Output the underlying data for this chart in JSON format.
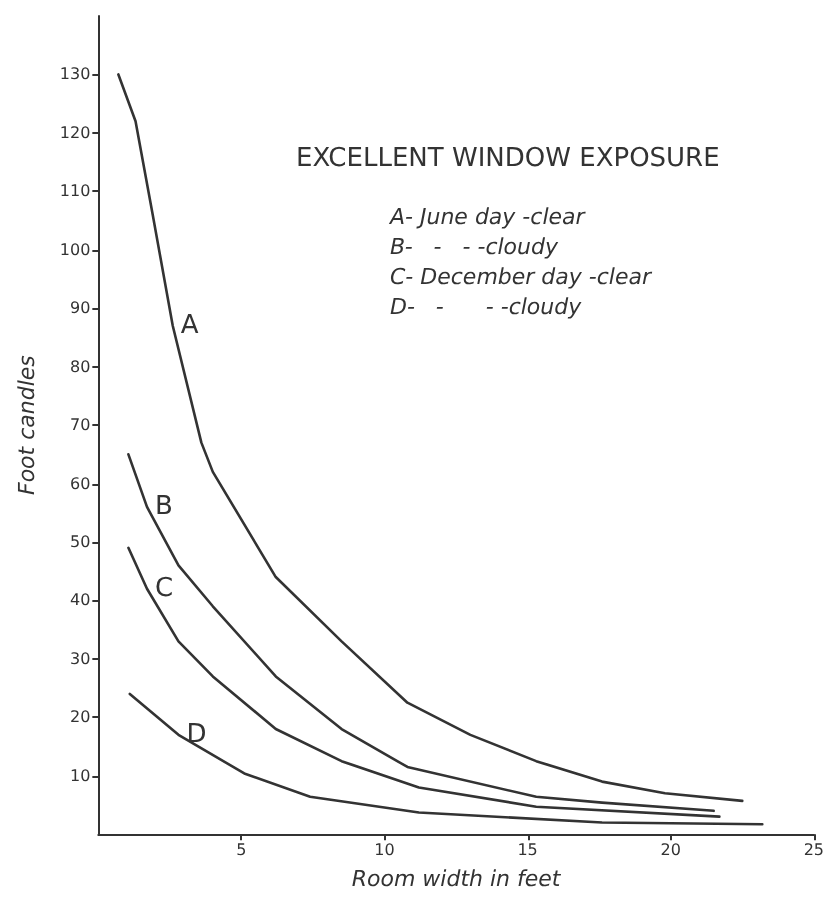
{
  "chart_data": {
    "type": "line",
    "title": "EXCELLENT WINDOW EXPOSURE",
    "xlabel": "Room width in feet",
    "ylabel": "Foot candles",
    "annotations": [
      "A- June day -clear",
      "B-   -   - -cloudy",
      "C- December day -clear",
      "D-   -      - -cloudy"
    ],
    "xlim": [
      0,
      25
    ],
    "xticks": [
      5,
      10,
      15,
      20,
      25
    ],
    "ylim": [
      0,
      140
    ],
    "yticks": [
      10,
      20,
      30,
      40,
      50,
      60,
      70,
      80,
      90,
      100,
      110,
      120,
      130
    ],
    "grid": false,
    "legend": false,
    "marker": "none",
    "line_style": "solid",
    "series": [
      {
        "name": "A",
        "color": "#333333",
        "x": [
          0.7,
          1.3,
          1.9,
          2.6,
          3.6,
          4,
          6.2,
          8.5,
          10.8,
          13,
          15.3,
          17.6,
          19.8,
          22.5
        ],
        "values": [
          130,
          122,
          106,
          87,
          67,
          62,
          44,
          33,
          22.5,
          17,
          12.5,
          9,
          7,
          5.7
        ]
      },
      {
        "name": "B",
        "color": "#333333",
        "x": [
          1.05,
          1.7,
          2.8,
          4,
          6.2,
          8.5,
          10.8,
          15.3,
          17.6,
          21.5
        ],
        "values": [
          65,
          56,
          46,
          39,
          27,
          18,
          11.5,
          6.4,
          5.4,
          4
        ]
      },
      {
        "name": "C",
        "color": "#333333",
        "x": [
          1.05,
          1.7,
          2.8,
          4,
          6.2,
          8.5,
          11.2,
          15.3,
          21.7
        ],
        "values": [
          49,
          42,
          33,
          27,
          18,
          12.5,
          8,
          4.7,
          3
        ]
      },
      {
        "name": "D",
        "color": "#333333",
        "x": [
          1.1,
          2.8,
          5.1,
          7.4,
          11.2,
          17.6,
          23.2
        ],
        "values": [
          24,
          17,
          10.4,
          6.4,
          3.7,
          2,
          1.7
        ]
      }
    ]
  }
}
